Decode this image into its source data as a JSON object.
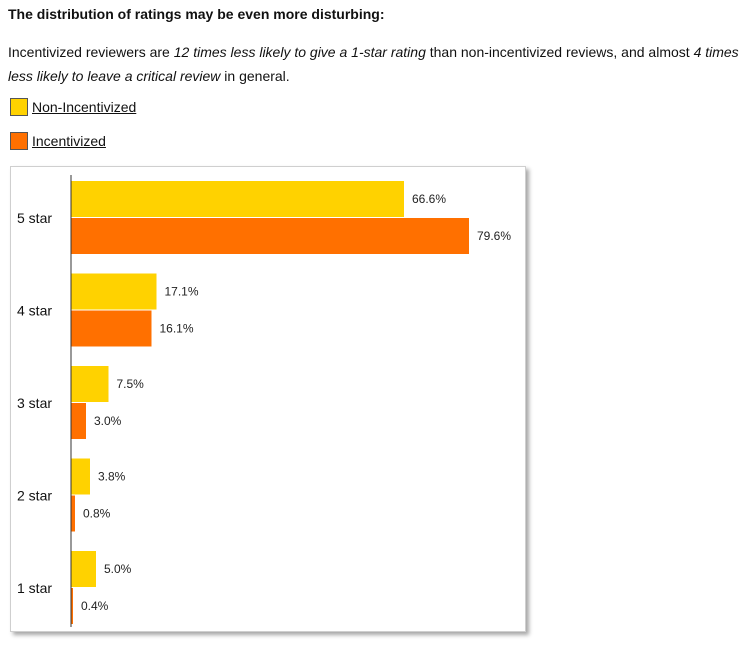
{
  "heading": "The distribution of ratings may be even more disturbing:",
  "intro": {
    "p1": "Incentivized reviewers are ",
    "em1": "12 times less likely to give a 1-star rating",
    "p2": " than non-incentivized reviews, and almost ",
    "em2": "4 times less likely to leave a critical review",
    "p3": " in general."
  },
  "legend": [
    {
      "label": "Non-Incentivized",
      "color": "#FFD200"
    },
    {
      "label": "Incentivized",
      "color": "#FF7000"
    }
  ],
  "chart_data": {
    "type": "bar",
    "orientation": "horizontal",
    "categories": [
      "5 star",
      "4 star",
      "3 star",
      "2 star",
      "1  star"
    ],
    "series": [
      {
        "name": "Non-Incentivized",
        "color": "#FFD200",
        "values": [
          66.6,
          17.1,
          7.5,
          3.8,
          5.0
        ],
        "labels": [
          "66.6%",
          "17.1%",
          "7.5%",
          "3.8%",
          "5.0%"
        ]
      },
      {
        "name": "Incentivized",
        "color": "#FF7000",
        "values": [
          79.6,
          16.1,
          3.0,
          0.8,
          0.4
        ],
        "labels": [
          "79.6%",
          "16.1%",
          "3.0%",
          "0.8%",
          "0.4%"
        ]
      }
    ],
    "xlim": [
      0,
      80
    ],
    "grid": false,
    "legend_position": "top-left"
  }
}
